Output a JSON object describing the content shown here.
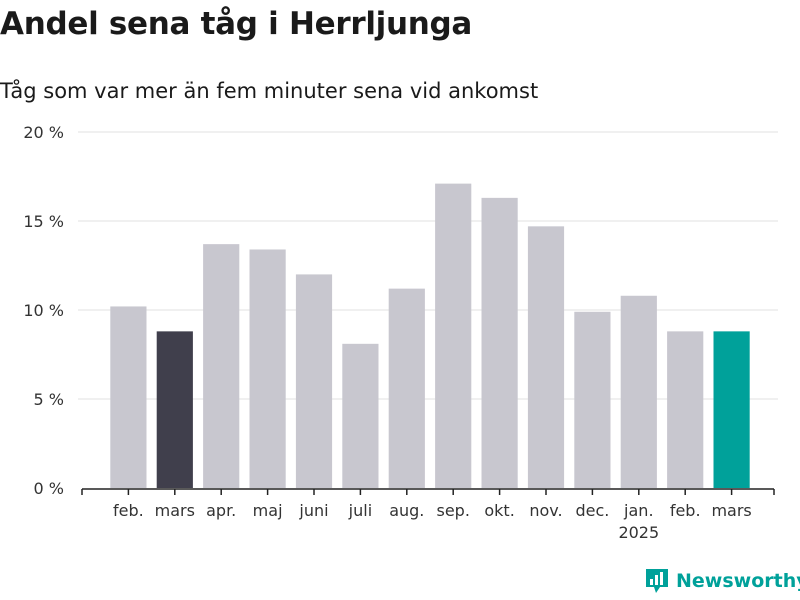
{
  "header": {
    "title": "Andel sena tåg i Herrljunga",
    "subtitle": "Tåg som var mer än fem minuter sena vid ankomst"
  },
  "brand": {
    "name": "Newsworthy",
    "icon": "bar-chart-logo-icon",
    "color": "#00a19a"
  },
  "chart_data": {
    "type": "bar",
    "categories": [
      "feb.",
      "mars",
      "apr.",
      "maj",
      "juni",
      "juli",
      "aug.",
      "sep.",
      "okt.",
      "nov.",
      "dec.",
      "jan.",
      "feb.",
      "mars"
    ],
    "category_sublabels": [
      "",
      "",
      "",
      "",
      "",
      "",
      "",
      "",
      "",
      "",
      "",
      "2025",
      "",
      ""
    ],
    "values": [
      10.2,
      8.8,
      13.7,
      13.4,
      12.0,
      8.1,
      11.2,
      17.1,
      16.3,
      14.7,
      9.9,
      10.8,
      8.8,
      8.8
    ],
    "colors": [
      "#c8c7cf",
      "#403f4c",
      "#c8c7cf",
      "#c8c7cf",
      "#c8c7cf",
      "#c8c7cf",
      "#c8c7cf",
      "#c8c7cf",
      "#c8c7cf",
      "#c8c7cf",
      "#c8c7cf",
      "#c8c7cf",
      "#c8c7cf",
      "#00a19a"
    ],
    "ylim": [
      0,
      20
    ],
    "yticks": [
      0,
      5,
      10,
      15,
      20
    ],
    "ytick_labels": [
      "0 %",
      "5 %",
      "10 %",
      "15 %",
      "20 %"
    ],
    "xlabel": "",
    "ylabel": "",
    "grid": true,
    "legend": "none"
  }
}
